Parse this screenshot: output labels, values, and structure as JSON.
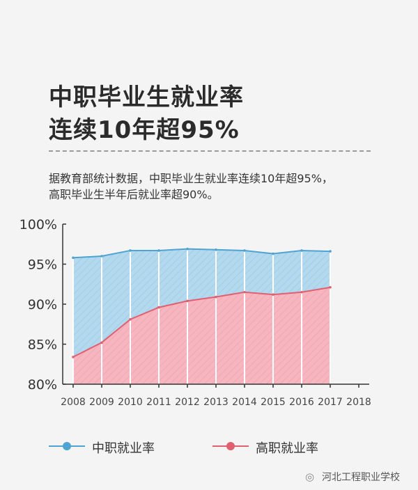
{
  "header": {
    "title_line1": "中职毕业生就业率",
    "title_line2": "连续10年超95%",
    "description_line1": "据教育部统计数据，中职毕业生就业率连续10年超95%，",
    "description_line2": "高职毕业生半年后就业率超90%。"
  },
  "colors": {
    "series1_line": "#4fa3d1",
    "series1_fill": "#b3d9ef",
    "series2_line": "#e06070",
    "series2_fill": "#f7b6bf",
    "axis": "#333333"
  },
  "legend": {
    "items": [
      {
        "label": "中职就业率",
        "color": "#4fa3d1"
      },
      {
        "label": "高职就业率",
        "color": "#e06070"
      }
    ]
  },
  "watermark": {
    "text": "河北工程职业学校",
    "icon": "wechat-icon"
  },
  "chart_data": {
    "type": "area",
    "x": [
      2008,
      2009,
      2010,
      2011,
      2012,
      2013,
      2014,
      2015,
      2016,
      2017
    ],
    "x_tick_labels": [
      "2008",
      "2009",
      "2010",
      "2011",
      "2012",
      "2013",
      "2014",
      "2015",
      "2016",
      "2017",
      "2018"
    ],
    "y_tick_labels": [
      "100%",
      "95%",
      "90%",
      "85%",
      "80%"
    ],
    "y_ticks": [
      100,
      95,
      90,
      85,
      80
    ],
    "ylim": [
      80,
      100
    ],
    "xlim": [
      2008,
      2018
    ],
    "grid": false,
    "legend_position": "bottom",
    "series": [
      {
        "name": "中职就业率",
        "values": [
          95.8,
          96.0,
          96.7,
          96.7,
          96.9,
          96.8,
          96.7,
          96.3,
          96.7,
          96.6
        ]
      },
      {
        "name": "高职就业率",
        "values": [
          83.4,
          85.2,
          88.1,
          89.6,
          90.4,
          90.9,
          91.5,
          91.2,
          91.5,
          92.1
        ]
      }
    ]
  }
}
